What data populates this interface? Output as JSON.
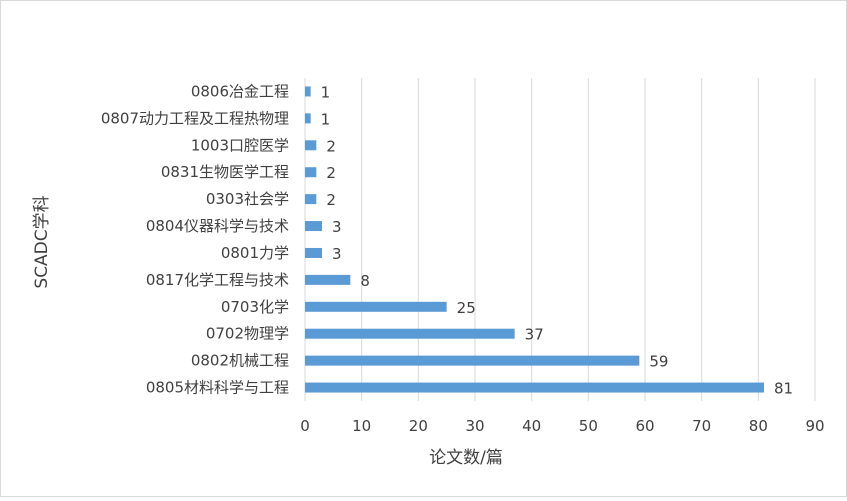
{
  "chart_data": {
    "type": "bar",
    "orientation": "horizontal",
    "categories": [
      "0806冶金工程",
      "0807动力工程及工程热物理",
      "1003口腔医学",
      "0831生物医学工程",
      "0303社会学",
      "0804仪器科学与技术",
      "0801力学",
      "0817化学工程与技术",
      "0703化学",
      "0702物理学",
      "0802机械工程",
      "0805材料科学与工程"
    ],
    "values": [
      1,
      1,
      2,
      2,
      2,
      3,
      3,
      8,
      25,
      37,
      59,
      81
    ],
    "xlabel": "论文数/篇",
    "ylabel": "SCADC学科",
    "xlim": [
      0,
      90
    ],
    "xticks": [
      0,
      10,
      20,
      30,
      40,
      50,
      60,
      70,
      80,
      90
    ],
    "grid": "vertical",
    "data_labels": true,
    "bar_color": "#5b9bd5"
  }
}
